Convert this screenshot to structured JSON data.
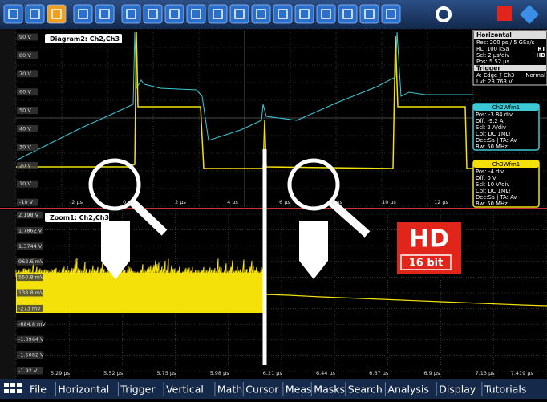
{
  "upper": {
    "label": "Diagram2: Ch2,Ch3",
    "y_labels": [
      "90 V",
      "80 V",
      "70 V",
      "60 V",
      "50 V",
      "40 V",
      "30 V",
      "20 V",
      "10 V",
      "-10 V"
    ],
    "x_labels": [
      "-2 µs",
      "0 µs",
      "2 µs",
      "4 µs",
      "6 µs",
      "8 µs",
      "10 µs",
      "12 µs"
    ]
  },
  "horizontal_panel": {
    "title": "Horizontal",
    "lines": [
      "Res: 200 ps / 5 GSa/s",
      "RL: 100 kSa",
      "Scl: 2 µs/div",
      "Pos: 5.52 µs"
    ],
    "flags": [
      "RT",
      "HD"
    ],
    "trigger_title": "Trigger",
    "trigger_mode": "Normal",
    "trigger_lines": [
      "A: Edge ⨍ Ch3",
      "Lvl: 28.763 V"
    ]
  },
  "ch2": {
    "title": "Ch2Wfm1",
    "lines": [
      "Pos: -3.84 div",
      "Off: -9.2 A",
      "Scl: 2 A/div",
      "Cpl: DC 1MΩ",
      "Dec:Sa | TA: Av",
      "Bw: 50 MHz"
    ]
  },
  "ch3": {
    "title": "Ch3Wfm1",
    "lines": [
      "Pos: -4 div",
      "Off: 0 V",
      "Scl: 10 V/div",
      "Cpl: DC 1MΩ",
      "Dec:Sa | TA: Av",
      "Bw: 50 MHz"
    ]
  },
  "zoom": {
    "label": "Zoom1: Ch2,Ch3",
    "y_labels": [
      "2.198 V",
      "1.7862 V",
      "1.3744 V",
      "962.6 mV",
      "550.8 mV",
      "138.8 mV",
      "-273 mV",
      "-684.8 mV",
      "-1.0964 V",
      "-1.5082 V",
      "-1.92 V"
    ],
    "x_labels": [
      "5.29 µs",
      "5.52 µs",
      "5.75 µs",
      "5.98 µs",
      "6.21 µs",
      "6.44 µs",
      "6.67 µs",
      "6.9 µs",
      "7.13 µs",
      "7.419 µs"
    ]
  },
  "logo": {
    "hd": "HD",
    "bits": "16 bit"
  },
  "menu": [
    "File",
    "Horizontal",
    "Trigger",
    "Vertical",
    "Math",
    "Cursor",
    "Meas",
    "Masks",
    "Search",
    "Analysis",
    "Display",
    "Tutorials"
  ]
}
